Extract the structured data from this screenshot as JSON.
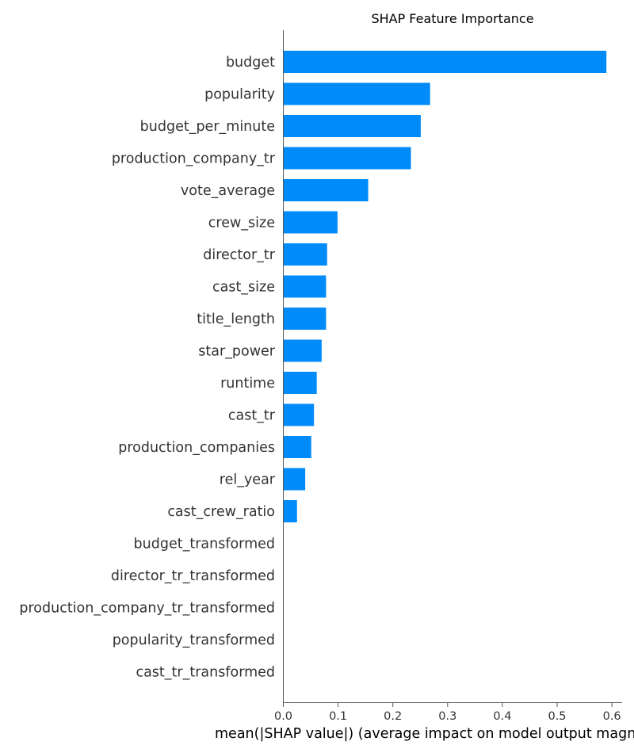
{
  "chart_data": {
    "type": "bar",
    "orientation": "horizontal",
    "title": "SHAP Feature Importance",
    "xlabel": "mean(|SHAP value|) (average impact on model output magnitude)",
    "ylabel": "",
    "xlim": [
      0,
      0.62
    ],
    "xticks": [
      "0.0",
      "0.1",
      "0.2",
      "0.3",
      "0.4",
      "0.5",
      "0.6"
    ],
    "grid": false,
    "bar_color": "#008bfb",
    "categories": [
      "budget",
      "popularity",
      "budget_per_minute",
      "production_company_tr",
      "vote_average",
      "crew_size",
      "director_tr",
      "cast_size",
      "title_length",
      "star_power",
      "runtime",
      "cast_tr",
      "production_companies",
      "rel_year",
      "cast_crew_ratio",
      "budget_transformed",
      "director_tr_transformed",
      "production_company_tr_transformed",
      "popularity_transformed",
      "cast_tr_transformed"
    ],
    "values": [
      0.59,
      0.268,
      0.251,
      0.233,
      0.155,
      0.099,
      0.08,
      0.078,
      0.078,
      0.07,
      0.061,
      0.056,
      0.051,
      0.04,
      0.025,
      0,
      0,
      0,
      0,
      0
    ]
  }
}
